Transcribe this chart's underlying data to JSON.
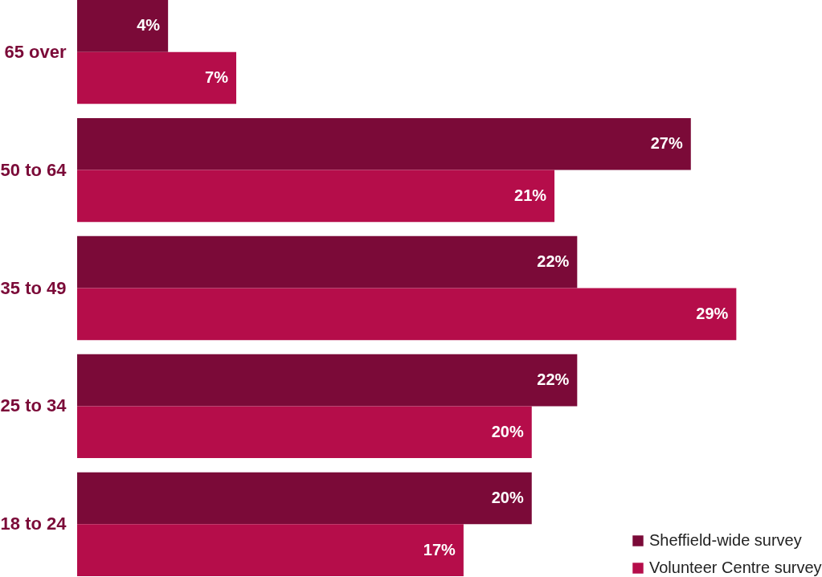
{
  "chart_data": {
    "type": "bar",
    "orientation": "horizontal",
    "categories": [
      "65 over",
      "50 to 64",
      "35 to 49",
      "25 to 34",
      "18 to 24"
    ],
    "series": [
      {
        "name": "Sheffield-wide survey",
        "color": "#7b0a38",
        "values": [
          4,
          27,
          22,
          22,
          20
        ],
        "value_labels": [
          "4%",
          "27%",
          "22%",
          "22%",
          "20%"
        ]
      },
      {
        "name": "Volunteer Centre survey",
        "color": "#b50d4a",
        "values": [
          7,
          21,
          29,
          20,
          17
        ],
        "value_labels": [
          "7%",
          "21%",
          "29%",
          "20%",
          "17%"
        ]
      }
    ],
    "legend": "bottom right"
  }
}
